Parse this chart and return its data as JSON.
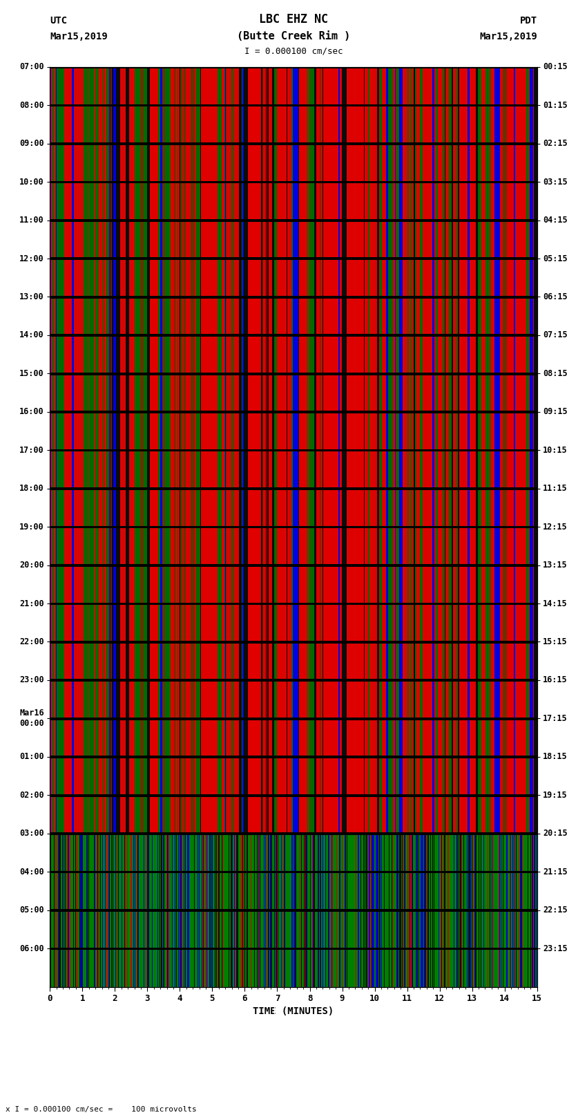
{
  "title_line1": "LBC EHZ NC",
  "title_line2": "(Butte Creek Rim )",
  "scale_text": "I = 0.000100 cm/sec",
  "bottom_scale_text": "x I = 0.000100 cm/sec =    100 microvolts",
  "utc_label": "UTC",
  "utc_date": "Mar15,2019",
  "pdt_label": "PDT",
  "pdt_date": "Mar15,2019",
  "left_times": [
    "07:00",
    "08:00",
    "09:00",
    "10:00",
    "11:00",
    "12:00",
    "13:00",
    "14:00",
    "15:00",
    "16:00",
    "17:00",
    "18:00",
    "19:00",
    "20:00",
    "21:00",
    "22:00",
    "23:00",
    "Mar16",
    "01:00",
    "02:00",
    "03:00",
    "04:00",
    "05:00",
    "06:00"
  ],
  "right_times": [
    "00:15",
    "01:15",
    "02:15",
    "03:15",
    "04:15",
    "05:15",
    "06:15",
    "07:15",
    "08:15",
    "09:15",
    "10:15",
    "11:15",
    "12:15",
    "13:15",
    "14:15",
    "15:15",
    "16:15",
    "17:15",
    "18:15",
    "19:15",
    "20:15",
    "21:15",
    "22:15",
    "23:15"
  ],
  "xlabel": "TIME (MINUTES)",
  "xticks": [
    0,
    1,
    2,
    3,
    4,
    5,
    6,
    7,
    8,
    9,
    10,
    11,
    12,
    13,
    14,
    15
  ],
  "bg_color": "#ffffff",
  "num_rows": 24,
  "num_cols": 750
}
